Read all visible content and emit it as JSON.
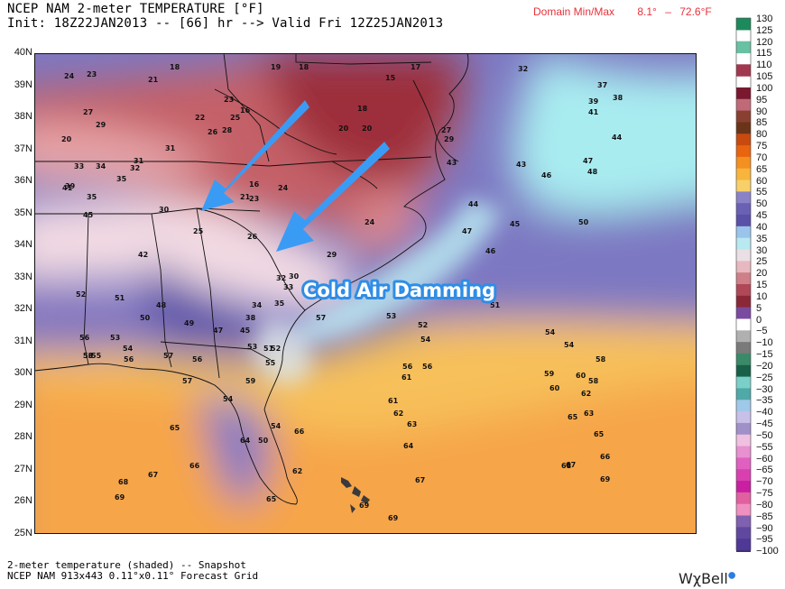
{
  "header": {
    "line1": "NCEP NAM 2-meter TEMPERATURE [°F]",
    "line2": "Init: 18Z22JAN2013 -- [66] hr --> Valid Fri 12Z25JAN2013",
    "minmax_label": "Domain Min/Max",
    "min_value": "8.1°",
    "dash": "–",
    "max_value": "72.6°F"
  },
  "footer": {
    "line1": "2-meter temperature (shaded) -- Snapshot",
    "line2": "NCEP NAM 913x443 0.11°x0.11° Forecast Grid"
  },
  "brand": {
    "name": "WχBell"
  },
  "annotation": {
    "text": "Cold Air Damming",
    "arrow_color": "#3a9bf5"
  },
  "lat_labels": [
    "40N",
    "39N",
    "38N",
    "37N",
    "36N",
    "35N",
    "34N",
    "33N",
    "32N",
    "31N",
    "30N",
    "29N",
    "28N",
    "27N",
    "26N",
    "25N"
  ],
  "colorbar_labels": [
    "130",
    "125",
    "120",
    "115",
    "110",
    "105",
    "100",
    "95",
    "90",
    "85",
    "80",
    "75",
    "70",
    "65",
    "60",
    "55",
    "50",
    "45",
    "40",
    "35",
    "30",
    "25",
    "20",
    "15",
    "10",
    "5",
    "0",
    "−5",
    "−10",
    "−15",
    "−20",
    "−25",
    "−30",
    "−35",
    "−40",
    "−45",
    "−50",
    "−55",
    "−60",
    "−65",
    "−70",
    "−75",
    "−80",
    "−85",
    "−90",
    "−95",
    "−100"
  ],
  "station_values": [
    {
      "v": "24"
    },
    {
      "v": "23"
    },
    {
      "v": "21"
    },
    {
      "v": "18"
    },
    {
      "v": "19"
    },
    {
      "v": "18"
    },
    {
      "v": "17"
    },
    {
      "v": "15"
    },
    {
      "v": "32"
    },
    {
      "v": "37"
    },
    {
      "v": "27"
    },
    {
      "v": "29"
    },
    {
      "v": "20"
    },
    {
      "v": "23"
    },
    {
      "v": "16"
    },
    {
      "v": "39"
    },
    {
      "v": "38"
    },
    {
      "v": "41"
    },
    {
      "v": "22"
    },
    {
      "v": "26"
    },
    {
      "v": "28"
    },
    {
      "v": "25"
    },
    {
      "v": "18"
    },
    {
      "v": "20"
    },
    {
      "v": "27"
    },
    {
      "v": "20"
    },
    {
      "v": "31"
    },
    {
      "v": "29"
    },
    {
      "v": "44"
    },
    {
      "v": "34"
    },
    {
      "v": "33"
    },
    {
      "v": "32"
    },
    {
      "v": "31"
    },
    {
      "v": "43"
    },
    {
      "v": "47"
    },
    {
      "v": "35"
    },
    {
      "v": "39"
    },
    {
      "v": "41"
    },
    {
      "v": "35"
    },
    {
      "v": "16"
    },
    {
      "v": "24"
    },
    {
      "v": "46"
    },
    {
      "v": "48"
    },
    {
      "v": "43"
    },
    {
      "v": "21"
    },
    {
      "v": "23"
    },
    {
      "v": "44"
    },
    {
      "v": "30"
    },
    {
      "v": "45"
    },
    {
      "v": "25"
    },
    {
      "v": "24"
    },
    {
      "v": "50"
    },
    {
      "v": "26"
    },
    {
      "v": "45"
    },
    {
      "v": "47"
    },
    {
      "v": "42"
    },
    {
      "v": "29"
    },
    {
      "v": "46"
    },
    {
      "v": "32"
    },
    {
      "v": "30"
    },
    {
      "v": "33"
    },
    {
      "v": "52"
    },
    {
      "v": "51"
    },
    {
      "v": "35"
    },
    {
      "v": "34"
    },
    {
      "v": "48"
    },
    {
      "v": "51"
    },
    {
      "v": "50"
    },
    {
      "v": "38"
    },
    {
      "v": "57"
    },
    {
      "v": "53"
    },
    {
      "v": "52"
    },
    {
      "v": "56"
    },
    {
      "v": "53"
    },
    {
      "v": "49"
    },
    {
      "v": "47"
    },
    {
      "v": "45"
    },
    {
      "v": "54"
    },
    {
      "v": "53"
    },
    {
      "v": "54"
    },
    {
      "v": "51"
    },
    {
      "v": "52"
    },
    {
      "v": "54"
    },
    {
      "v": "54"
    },
    {
      "v": "57"
    },
    {
      "v": "56"
    },
    {
      "v": "53"
    },
    {
      "v": "55"
    },
    {
      "v": "56"
    },
    {
      "v": "56"
    },
    {
      "v": "55"
    },
    {
      "v": "57"
    },
    {
      "v": "56"
    },
    {
      "v": "56"
    },
    {
      "v": "58"
    },
    {
      "v": "59"
    },
    {
      "v": "60"
    },
    {
      "v": "59"
    },
    {
      "v": "58"
    },
    {
      "v": "60"
    },
    {
      "v": "54"
    },
    {
      "v": "61"
    },
    {
      "v": "62"
    },
    {
      "v": "62"
    },
    {
      "v": "63"
    },
    {
      "v": "61"
    },
    {
      "v": "65"
    },
    {
      "v": "65"
    },
    {
      "v": "63"
    },
    {
      "v": "54"
    },
    {
      "v": "66"
    },
    {
      "v": "65"
    },
    {
      "v": "64"
    },
    {
      "v": "64"
    },
    {
      "v": "50"
    },
    {
      "v": "66"
    },
    {
      "v": "66"
    },
    {
      "v": "67"
    },
    {
      "v": "62"
    },
    {
      "v": "67"
    },
    {
      "v": "68"
    },
    {
      "v": "67"
    },
    {
      "v": "68"
    },
    {
      "v": "69"
    },
    {
      "v": "69"
    },
    {
      "v": "65"
    },
    {
      "v": "69"
    },
    {
      "v": "69"
    }
  ]
}
